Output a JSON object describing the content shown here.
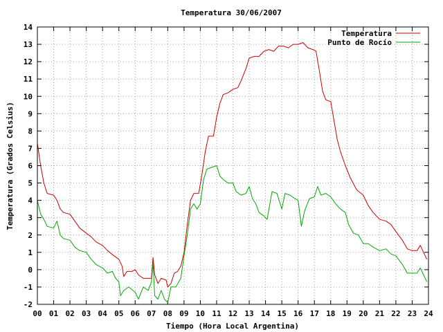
{
  "chart_data": {
    "type": "line",
    "title": "Temperatura 30/06/2007",
    "xlabel": "Tiempo (Hora Local Argentina)",
    "ylabel": "Temperatura (Grados Celsius)",
    "xlim": [
      0,
      24
    ],
    "ylim": [
      -2,
      14
    ],
    "x_ticks": [
      "00",
      "01",
      "02",
      "03",
      "04",
      "05",
      "06",
      "07",
      "08",
      "09",
      "10",
      "11",
      "12",
      "13",
      "14",
      "15",
      "16",
      "17",
      "18",
      "19",
      "20",
      "21",
      "22",
      "23",
      "24"
    ],
    "y_ticks": [
      -2,
      -1,
      0,
      1,
      2,
      3,
      4,
      5,
      6,
      7,
      8,
      9,
      10,
      11,
      12,
      13,
      14
    ],
    "grid": true,
    "legend_position": "top-right",
    "series": [
      {
        "name": "Temperatura",
        "color": "#cc0000",
        "points": [
          [
            0.0,
            7.3
          ],
          [
            0.2,
            6.0
          ],
          [
            0.4,
            5.0
          ],
          [
            0.6,
            4.4
          ],
          [
            1.0,
            4.3
          ],
          [
            1.2,
            4.0
          ],
          [
            1.4,
            3.5
          ],
          [
            1.6,
            3.3
          ],
          [
            2.0,
            3.2
          ],
          [
            2.3,
            2.8
          ],
          [
            2.6,
            2.4
          ],
          [
            3.0,
            2.1
          ],
          [
            3.3,
            1.9
          ],
          [
            3.6,
            1.6
          ],
          [
            4.0,
            1.4
          ],
          [
            4.3,
            1.1
          ],
          [
            4.7,
            0.8
          ],
          [
            5.0,
            0.6
          ],
          [
            5.2,
            0.2
          ],
          [
            5.3,
            -0.4
          ],
          [
            5.5,
            -0.1
          ],
          [
            5.8,
            -0.1
          ],
          [
            6.0,
            0.0
          ],
          [
            6.2,
            -0.3
          ],
          [
            6.5,
            -0.5
          ],
          [
            6.8,
            -0.5
          ],
          [
            7.0,
            -0.5
          ],
          [
            7.1,
            0.7
          ],
          [
            7.2,
            -0.3
          ],
          [
            7.4,
            -0.8
          ],
          [
            7.6,
            -0.5
          ],
          [
            7.9,
            -0.6
          ],
          [
            8.0,
            -1.0
          ],
          [
            8.2,
            -0.8
          ],
          [
            8.4,
            -0.2
          ],
          [
            8.6,
            -0.1
          ],
          [
            8.8,
            0.2
          ],
          [
            9.0,
            1.0
          ],
          [
            9.2,
            2.6
          ],
          [
            9.4,
            4.0
          ],
          [
            9.6,
            4.4
          ],
          [
            9.9,
            4.4
          ],
          [
            10.1,
            5.5
          ],
          [
            10.3,
            6.8
          ],
          [
            10.5,
            7.7
          ],
          [
            10.8,
            7.7
          ],
          [
            11.0,
            8.8
          ],
          [
            11.2,
            9.6
          ],
          [
            11.4,
            10.1
          ],
          [
            11.7,
            10.2
          ],
          [
            12.0,
            10.4
          ],
          [
            12.3,
            10.5
          ],
          [
            12.5,
            10.9
          ],
          [
            12.8,
            11.6
          ],
          [
            13.0,
            12.2
          ],
          [
            13.3,
            12.3
          ],
          [
            13.6,
            12.3
          ],
          [
            13.9,
            12.6
          ],
          [
            14.2,
            12.7
          ],
          [
            14.5,
            12.6
          ],
          [
            14.8,
            12.9
          ],
          [
            15.1,
            12.9
          ],
          [
            15.4,
            12.8
          ],
          [
            15.7,
            13.0
          ],
          [
            16.0,
            13.0
          ],
          [
            16.3,
            13.1
          ],
          [
            16.6,
            12.8
          ],
          [
            16.9,
            12.7
          ],
          [
            17.1,
            12.6
          ],
          [
            17.3,
            11.5
          ],
          [
            17.5,
            10.3
          ],
          [
            17.7,
            9.8
          ],
          [
            18.0,
            9.7
          ],
          [
            18.2,
            8.6
          ],
          [
            18.4,
            7.5
          ],
          [
            18.6,
            6.8
          ],
          [
            18.9,
            6.0
          ],
          [
            19.2,
            5.3
          ],
          [
            19.6,
            4.6
          ],
          [
            20.0,
            4.3
          ],
          [
            20.3,
            3.7
          ],
          [
            20.6,
            3.3
          ],
          [
            21.0,
            2.9
          ],
          [
            21.4,
            2.8
          ],
          [
            21.7,
            2.6
          ],
          [
            22.0,
            2.2
          ],
          [
            22.4,
            1.7
          ],
          [
            22.7,
            1.2
          ],
          [
            23.0,
            1.1
          ],
          [
            23.3,
            1.1
          ],
          [
            23.5,
            1.4
          ],
          [
            23.7,
            1.0
          ],
          [
            23.9,
            0.6
          ]
        ]
      },
      {
        "name": "Punto de Rocío",
        "color": "#00aa00",
        "points": [
          [
            0.0,
            4.0
          ],
          [
            0.2,
            3.2
          ],
          [
            0.4,
            2.9
          ],
          [
            0.6,
            2.5
          ],
          [
            1.0,
            2.4
          ],
          [
            1.2,
            2.8
          ],
          [
            1.4,
            2.0
          ],
          [
            1.6,
            1.8
          ],
          [
            2.0,
            1.7
          ],
          [
            2.3,
            1.3
          ],
          [
            2.6,
            1.1
          ],
          [
            3.0,
            1.0
          ],
          [
            3.3,
            0.6
          ],
          [
            3.6,
            0.3
          ],
          [
            4.0,
            0.1
          ],
          [
            4.3,
            -0.2
          ],
          [
            4.6,
            -0.1
          ],
          [
            4.8,
            -0.5
          ],
          [
            5.0,
            -0.7
          ],
          [
            5.1,
            -1.5
          ],
          [
            5.3,
            -1.2
          ],
          [
            5.6,
            -1.0
          ],
          [
            6.0,
            -1.3
          ],
          [
            6.2,
            -1.7
          ],
          [
            6.5,
            -1.0
          ],
          [
            6.8,
            -1.2
          ],
          [
            7.0,
            -0.7
          ],
          [
            7.1,
            0.4
          ],
          [
            7.2,
            -1.5
          ],
          [
            7.4,
            -1.7
          ],
          [
            7.6,
            -1.2
          ],
          [
            7.8,
            -1.7
          ],
          [
            8.0,
            -1.9
          ],
          [
            8.2,
            -1.0
          ],
          [
            8.5,
            -1.0
          ],
          [
            8.8,
            -0.5
          ],
          [
            9.0,
            0.8
          ],
          [
            9.2,
            2.0
          ],
          [
            9.4,
            3.5
          ],
          [
            9.6,
            3.8
          ],
          [
            9.8,
            3.5
          ],
          [
            10.0,
            3.8
          ],
          [
            10.2,
            5.2
          ],
          [
            10.4,
            5.8
          ],
          [
            10.7,
            5.9
          ],
          [
            11.0,
            6.0
          ],
          [
            11.2,
            5.4
          ],
          [
            11.4,
            5.2
          ],
          [
            11.7,
            5.0
          ],
          [
            12.0,
            5.0
          ],
          [
            12.2,
            4.5
          ],
          [
            12.5,
            4.3
          ],
          [
            12.8,
            4.4
          ],
          [
            13.0,
            4.8
          ],
          [
            13.2,
            4.1
          ],
          [
            13.4,
            3.8
          ],
          [
            13.6,
            3.3
          ],
          [
            13.9,
            3.1
          ],
          [
            14.1,
            2.9
          ],
          [
            14.4,
            4.5
          ],
          [
            14.7,
            4.4
          ],
          [
            15.0,
            3.5
          ],
          [
            15.2,
            4.4
          ],
          [
            15.5,
            4.3
          ],
          [
            15.8,
            4.1
          ],
          [
            16.0,
            4.0
          ],
          [
            16.2,
            2.5
          ],
          [
            16.4,
            3.4
          ],
          [
            16.7,
            4.1
          ],
          [
            17.0,
            4.2
          ],
          [
            17.2,
            4.8
          ],
          [
            17.4,
            4.3
          ],
          [
            17.7,
            4.4
          ],
          [
            18.0,
            4.2
          ],
          [
            18.3,
            3.8
          ],
          [
            18.6,
            3.5
          ],
          [
            18.9,
            3.3
          ],
          [
            19.1,
            2.6
          ],
          [
            19.4,
            2.1
          ],
          [
            19.7,
            2.0
          ],
          [
            20.0,
            1.5
          ],
          [
            20.3,
            1.5
          ],
          [
            20.6,
            1.3
          ],
          [
            21.0,
            1.1
          ],
          [
            21.4,
            1.2
          ],
          [
            21.7,
            0.9
          ],
          [
            22.0,
            0.8
          ],
          [
            22.4,
            0.3
          ],
          [
            22.7,
            -0.2
          ],
          [
            23.0,
            -0.2
          ],
          [
            23.3,
            -0.2
          ],
          [
            23.5,
            0.1
          ],
          [
            23.7,
            -0.3
          ],
          [
            23.9,
            -0.7
          ]
        ]
      }
    ]
  }
}
